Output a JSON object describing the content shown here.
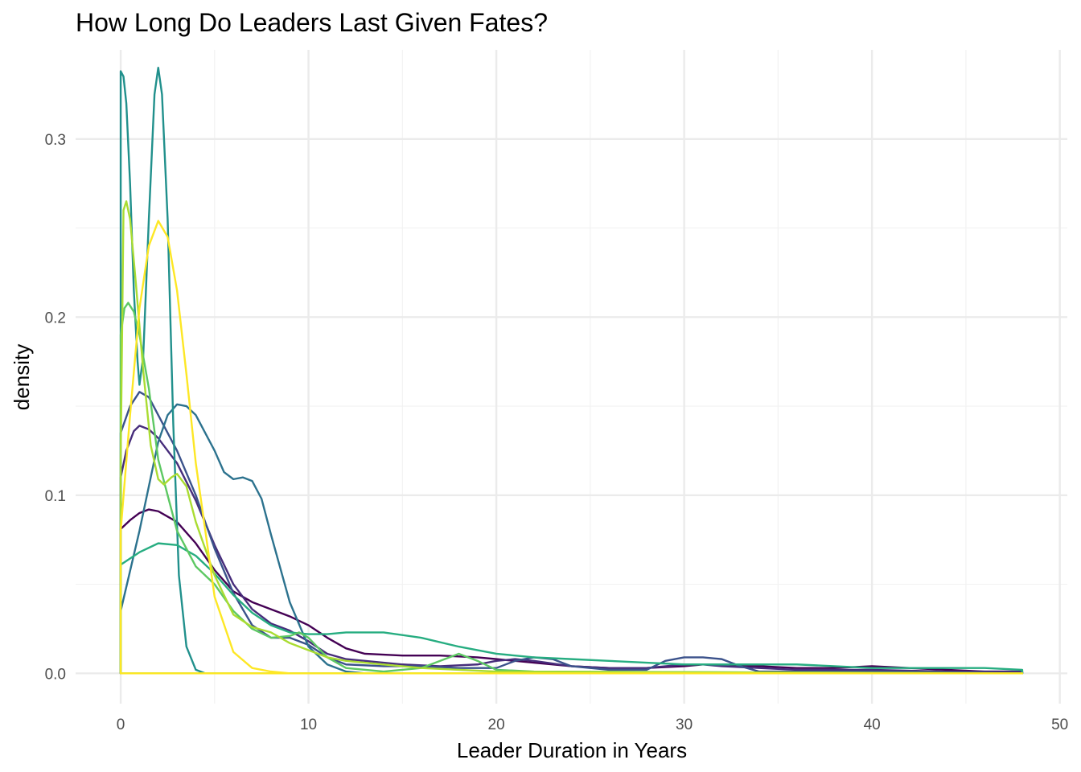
{
  "chart_data": {
    "type": "line",
    "title": "How Long Do Leaders Last Given Fates?",
    "xlabel": "Leader Duration in Years",
    "ylabel": "density",
    "xlim": [
      -2.4,
      50.4
    ],
    "ylim": [
      -0.017,
      0.35
    ],
    "x_ticks": [
      0,
      10,
      20,
      30,
      40,
      50
    ],
    "x_tick_labels": [
      "0",
      "10",
      "20",
      "30",
      "40",
      "50"
    ],
    "y_ticks": [
      0.0,
      0.1,
      0.2,
      0.3
    ],
    "y_tick_labels": [
      "0.0",
      "0.1",
      "0.2",
      "0.3"
    ],
    "grid": true,
    "legend": "none",
    "series": [
      {
        "color": "#440154",
        "points": [
          [
            0,
            0.081
          ],
          [
            0.5,
            0.086
          ],
          [
            1,
            0.09
          ],
          [
            1.5,
            0.092
          ],
          [
            2,
            0.091
          ],
          [
            3,
            0.085
          ],
          [
            4,
            0.073
          ],
          [
            5,
            0.058
          ],
          [
            6,
            0.046
          ],
          [
            7,
            0.04
          ],
          [
            8,
            0.036
          ],
          [
            9,
            0.032
          ],
          [
            10,
            0.027
          ],
          [
            11,
            0.02
          ],
          [
            12,
            0.014
          ],
          [
            13,
            0.011
          ],
          [
            15,
            0.01
          ],
          [
            17,
            0.01
          ],
          [
            19,
            0.009
          ],
          [
            20,
            0.008
          ],
          [
            21,
            0.007
          ],
          [
            22,
            0.006
          ],
          [
            24,
            0.004
          ],
          [
            26,
            0.003
          ],
          [
            28,
            0.003
          ],
          [
            30,
            0.004
          ],
          [
            31,
            0.005
          ],
          [
            32,
            0.005
          ],
          [
            34,
            0.004
          ],
          [
            36,
            0.003
          ],
          [
            38,
            0.003
          ],
          [
            40,
            0.004
          ],
          [
            42,
            0.003
          ],
          [
            44,
            0.002
          ],
          [
            46,
            0.001
          ],
          [
            48,
            0.001
          ]
        ]
      },
      {
        "color": "#472D7B",
        "points": [
          [
            0,
            0.11
          ],
          [
            0.3,
            0.125
          ],
          [
            0.7,
            0.136
          ],
          [
            1,
            0.139
          ],
          [
            1.5,
            0.137
          ],
          [
            2,
            0.132
          ],
          [
            3,
            0.118
          ],
          [
            4,
            0.097
          ],
          [
            5,
            0.072
          ],
          [
            6,
            0.05
          ],
          [
            7,
            0.036
          ],
          [
            8,
            0.028
          ],
          [
            9,
            0.024
          ],
          [
            10,
            0.018
          ],
          [
            11,
            0.011
          ],
          [
            12,
            0.008
          ],
          [
            13,
            0.007
          ],
          [
            15,
            0.005
          ],
          [
            17,
            0.004
          ],
          [
            19,
            0.005
          ],
          [
            20,
            0.007
          ],
          [
            21,
            0.008
          ],
          [
            22,
            0.007
          ],
          [
            24,
            0.004
          ],
          [
            26,
            0.003
          ],
          [
            28,
            0.003
          ],
          [
            30,
            0.005
          ],
          [
            31,
            0.005
          ],
          [
            32,
            0.004
          ],
          [
            34,
            0.003
          ],
          [
            36,
            0.002
          ],
          [
            40,
            0.002
          ],
          [
            44,
            0.001
          ],
          [
            48,
            0.001
          ]
        ]
      },
      {
        "color": "#3B528B",
        "points": [
          [
            0,
            0.135
          ],
          [
            0.5,
            0.15
          ],
          [
            1,
            0.158
          ],
          [
            1.5,
            0.155
          ],
          [
            2,
            0.145
          ],
          [
            3,
            0.125
          ],
          [
            4,
            0.1
          ],
          [
            5,
            0.07
          ],
          [
            6,
            0.045
          ],
          [
            7,
            0.027
          ],
          [
            8,
            0.02
          ],
          [
            9,
            0.02
          ],
          [
            10,
            0.016
          ],
          [
            11,
            0.009
          ],
          [
            12,
            0.005
          ],
          [
            14,
            0.004
          ],
          [
            16,
            0.004
          ],
          [
            18,
            0.003
          ],
          [
            20,
            0.003
          ],
          [
            21,
            0.007
          ],
          [
            22,
            0.009
          ],
          [
            23,
            0.008
          ],
          [
            24,
            0.004
          ],
          [
            26,
            0.002
          ],
          [
            28,
            0.002
          ],
          [
            29,
            0.007
          ],
          [
            30,
            0.009
          ],
          [
            31,
            0.009
          ],
          [
            32,
            0.008
          ],
          [
            33,
            0.004
          ],
          [
            34,
            0.001
          ],
          [
            36,
            0.001
          ],
          [
            40,
            0.001
          ],
          [
            48,
            0
          ]
        ]
      },
      {
        "color": "#2C728E",
        "points": [
          [
            0,
            0.035
          ],
          [
            1,
            0.08
          ],
          [
            2,
            0.13
          ],
          [
            2.5,
            0.145
          ],
          [
            3,
            0.151
          ],
          [
            3.5,
            0.15
          ],
          [
            4,
            0.145
          ],
          [
            5,
            0.125
          ],
          [
            5.5,
            0.113
          ],
          [
            6,
            0.109
          ],
          [
            6.5,
            0.11
          ],
          [
            7,
            0.108
          ],
          [
            7.5,
            0.098
          ],
          [
            8,
            0.078
          ],
          [
            9,
            0.04
          ],
          [
            10,
            0.015
          ],
          [
            11,
            0.005
          ],
          [
            12,
            0.001
          ],
          [
            13,
            0
          ],
          [
            48,
            0
          ]
        ]
      },
      {
        "color": "#21908C",
        "points": [
          [
            0,
            0.338
          ],
          [
            0.15,
            0.335
          ],
          [
            0.3,
            0.32
          ],
          [
            0.5,
            0.275
          ],
          [
            0.7,
            0.215
          ],
          [
            0.9,
            0.175
          ],
          [
            1.0,
            0.162
          ],
          [
            1.2,
            0.178
          ],
          [
            1.5,
            0.255
          ],
          [
            1.8,
            0.325
          ],
          [
            2.0,
            0.34
          ],
          [
            2.2,
            0.325
          ],
          [
            2.5,
            0.255
          ],
          [
            2.8,
            0.14
          ],
          [
            3.1,
            0.055
          ],
          [
            3.5,
            0.015
          ],
          [
            4,
            0.002
          ],
          [
            4.5,
            0
          ],
          [
            48,
            0
          ]
        ]
      },
      {
        "color": "#27AD81",
        "points": [
          [
            0,
            0.061
          ],
          [
            1,
            0.068
          ],
          [
            2,
            0.073
          ],
          [
            3,
            0.072
          ],
          [
            4,
            0.066
          ],
          [
            5,
            0.056
          ],
          [
            6,
            0.044
          ],
          [
            7,
            0.034
          ],
          [
            8,
            0.027
          ],
          [
            9,
            0.023
          ],
          [
            10,
            0.022
          ],
          [
            11,
            0.022
          ],
          [
            12,
            0.023
          ],
          [
            13,
            0.023
          ],
          [
            14,
            0.023
          ],
          [
            16,
            0.02
          ],
          [
            18,
            0.015
          ],
          [
            20,
            0.011
          ],
          [
            22,
            0.009
          ],
          [
            24,
            0.008
          ],
          [
            26,
            0.007
          ],
          [
            28,
            0.006
          ],
          [
            30,
            0.005
          ],
          [
            33,
            0.005
          ],
          [
            36,
            0.005
          ],
          [
            38,
            0.004
          ],
          [
            40,
            0.003
          ],
          [
            42,
            0.003
          ],
          [
            44,
            0.003
          ],
          [
            46,
            0.003
          ],
          [
            48,
            0.002
          ]
        ]
      },
      {
        "color": "#5DC863",
        "points": [
          [
            0,
            0.19
          ],
          [
            0.2,
            0.205
          ],
          [
            0.4,
            0.208
          ],
          [
            0.7,
            0.203
          ],
          [
            1,
            0.19
          ],
          [
            1.5,
            0.16
          ],
          [
            2,
            0.12
          ],
          [
            3,
            0.08
          ],
          [
            4,
            0.06
          ],
          [
            5,
            0.05
          ],
          [
            6,
            0.035
          ],
          [
            7,
            0.025
          ],
          [
            8,
            0.02
          ],
          [
            9,
            0.021
          ],
          [
            9.5,
            0.023
          ],
          [
            10,
            0.02
          ],
          [
            11,
            0.009
          ],
          [
            12,
            0.003
          ],
          [
            14,
            0.001
          ],
          [
            16,
            0.003
          ],
          [
            17,
            0.007
          ],
          [
            18,
            0.011
          ],
          [
            19,
            0.007
          ],
          [
            20,
            0.002
          ],
          [
            22,
            0.001
          ],
          [
            48,
            0
          ]
        ]
      },
      {
        "color": "#AADC32",
        "points": [
          [
            0,
            0.12
          ],
          [
            0.15,
            0.26
          ],
          [
            0.3,
            0.265
          ],
          [
            0.5,
            0.255
          ],
          [
            0.8,
            0.22
          ],
          [
            1.2,
            0.17
          ],
          [
            1.6,
            0.128
          ],
          [
            2,
            0.109
          ],
          [
            2.3,
            0.106
          ],
          [
            2.7,
            0.11
          ],
          [
            3,
            0.112
          ],
          [
            3.5,
            0.105
          ],
          [
            4,
            0.085
          ],
          [
            5,
            0.055
          ],
          [
            6,
            0.033
          ],
          [
            7,
            0.026
          ],
          [
            8,
            0.023
          ],
          [
            9,
            0.017
          ],
          [
            10,
            0.013
          ],
          [
            11,
            0.009
          ],
          [
            12,
            0.007
          ],
          [
            14,
            0.005
          ],
          [
            16,
            0.003
          ],
          [
            20,
            0.001
          ],
          [
            48,
            0
          ]
        ]
      },
      {
        "color": "#FDE725",
        "points": [
          [
            0,
            0.08
          ],
          [
            0.5,
            0.145
          ],
          [
            1,
            0.205
          ],
          [
            1.5,
            0.24
          ],
          [
            2,
            0.254
          ],
          [
            2.5,
            0.245
          ],
          [
            3,
            0.215
          ],
          [
            3.5,
            0.168
          ],
          [
            4,
            0.118
          ],
          [
            5,
            0.043
          ],
          [
            6,
            0.012
          ],
          [
            7,
            0.003
          ],
          [
            8,
            0.001
          ],
          [
            9,
            0
          ],
          [
            48,
            0
          ]
        ]
      }
    ]
  }
}
